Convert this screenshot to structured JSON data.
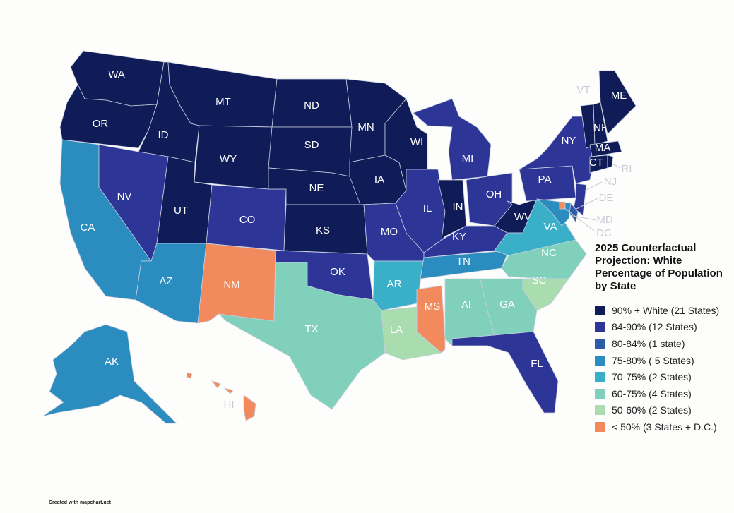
{
  "title": "2025 Counterfactual Projection: White Percentage of Population by State",
  "legend": [
    {
      "label": "90% + White (21 States)",
      "color": "#101c57"
    },
    {
      "label": "84-90% (12 States)",
      "color": "#2d3597"
    },
    {
      "label": "80-84% (1 state)",
      "color": "#2b5ca8"
    },
    {
      "label": "75-80% ( 5 States)",
      "color": "#2a8cbf"
    },
    {
      "label": "70-75% (2 States)",
      "color": "#3aafc8"
    },
    {
      "label": "60-75% (4 States)",
      "color": "#80d0bb"
    },
    {
      "label": "50-60% (2 States)",
      "color": "#a9dcaf"
    },
    {
      "label": "< 50% (3 States + D.C.)",
      "color": "#f28a5d"
    }
  ],
  "states": [
    {
      "label": "WA",
      "color": "#101c57"
    },
    {
      "label": "OR",
      "color": "#101c57"
    },
    {
      "label": "CA",
      "color": "#2a8cbf"
    },
    {
      "label": "ID",
      "color": "#101c57"
    },
    {
      "label": "NV",
      "color": "#2d3597"
    },
    {
      "label": "MT",
      "color": "#101c57"
    },
    {
      "label": "WY",
      "color": "#101c57"
    },
    {
      "label": "UT",
      "color": "#101c57"
    },
    {
      "label": "AZ",
      "color": "#2a8cbf"
    },
    {
      "label": "CO",
      "color": "#2d3597"
    },
    {
      "label": "NM",
      "color": "#f28a5d"
    },
    {
      "label": "ND",
      "color": "#101c57"
    },
    {
      "label": "SD",
      "color": "#101c57"
    },
    {
      "label": "NE",
      "color": "#101c57"
    },
    {
      "label": "KS",
      "color": "#101c57"
    },
    {
      "label": "OK",
      "color": "#2d3597"
    },
    {
      "label": "TX",
      "color": "#80d0bb"
    },
    {
      "label": "MN",
      "color": "#101c57"
    },
    {
      "label": "IA",
      "color": "#101c57"
    },
    {
      "label": "MO",
      "color": "#2d3597"
    },
    {
      "label": "AR",
      "color": "#3aafc8"
    },
    {
      "label": "LA",
      "color": "#a9dcaf"
    },
    {
      "label": "WI",
      "color": "#101c57"
    },
    {
      "label": "IL",
      "color": "#2d3597"
    },
    {
      "label": "MS",
      "color": "#f28a5d"
    },
    {
      "label": "MI",
      "color": "#2d3597"
    },
    {
      "label": "IN",
      "color": "#101c57"
    },
    {
      "label": "KY",
      "color": "#2d3597"
    },
    {
      "label": "TN",
      "color": "#2a8cbf"
    },
    {
      "label": "AL",
      "color": "#80d0bb"
    },
    {
      "label": "OH",
      "color": "#2d3597"
    },
    {
      "label": "WV",
      "color": "#101c57"
    },
    {
      "label": "GA",
      "color": "#80d0bb"
    },
    {
      "label": "FL",
      "color": "#2d3597"
    },
    {
      "label": "VA",
      "color": "#3aafc8"
    },
    {
      "label": "NC",
      "color": "#80d0bb"
    },
    {
      "label": "SC",
      "color": "#a9dcaf"
    },
    {
      "label": "PA",
      "color": "#2d3597"
    },
    {
      "label": "NY",
      "color": "#2d3597"
    },
    {
      "label": "NJ",
      "color": "#2d3597"
    },
    {
      "label": "DE",
      "color": "#2b5ca8"
    },
    {
      "label": "MD",
      "color": "#2a8cbf"
    },
    {
      "label": "DC",
      "color": "#f28a5d"
    },
    {
      "label": "VT",
      "color": "#101c57"
    },
    {
      "label": "NH",
      "color": "#101c57"
    },
    {
      "label": "ME",
      "color": "#101c57"
    },
    {
      "label": "MA",
      "color": "#101c57"
    },
    {
      "label": "CT",
      "color": "#101c57"
    },
    {
      "label": "RI",
      "color": "#101c57"
    },
    {
      "label": "AK",
      "color": "#2a8cbf"
    },
    {
      "label": "HI",
      "color": "#f28a5d"
    }
  ],
  "credit": "Created with mapchart.net"
}
